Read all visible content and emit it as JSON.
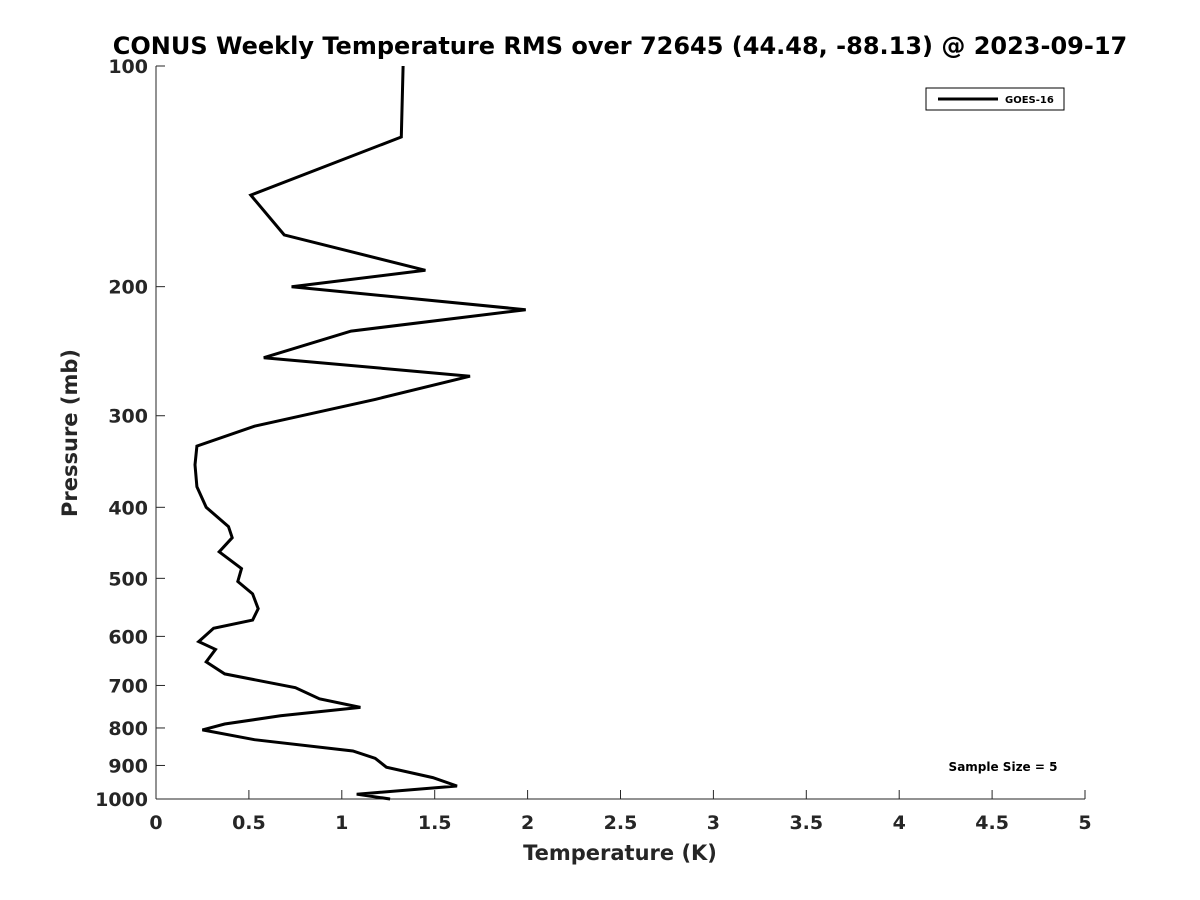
{
  "chart_data": {
    "type": "line",
    "title": "CONUS Weekly Temperature RMS over 72645 (44.48, -88.13) @ 2023-09-17",
    "xlabel": "Temperature (K)",
    "ylabel": "Pressure (mb)",
    "xlim": [
      0,
      5
    ],
    "ylim": [
      100,
      1000
    ],
    "y_scale": "log",
    "y_reversed": true,
    "x_ticks": [
      0,
      0.5,
      1,
      1.5,
      2,
      2.5,
      3,
      3.5,
      4,
      4.5,
      5
    ],
    "x_tick_labels": [
      "0",
      "0.5",
      "1",
      "1.5",
      "2",
      "2.5",
      "3",
      "3.5",
      "4",
      "4.5",
      "5"
    ],
    "y_ticks": [
      100,
      200,
      300,
      400,
      500,
      600,
      700,
      800,
      900,
      1000
    ],
    "y_tick_labels": [
      "100",
      "200",
      "300",
      "400",
      "500",
      "600",
      "700",
      "800",
      "900",
      "1000"
    ],
    "grid": false,
    "legend_position": "top-right",
    "series": [
      {
        "name": "GOES-16",
        "color": "#000000",
        "temperature": [
          1.33,
          1.32,
          0.51,
          0.69,
          1.45,
          0.73,
          1.99,
          1.05,
          0.58,
          1.69,
          1.18,
          0.53,
          0.22,
          0.21,
          0.22,
          0.27,
          0.39,
          0.41,
          0.34,
          0.46,
          0.44,
          0.52,
          0.55,
          0.52,
          0.31,
          0.23,
          0.32,
          0.27,
          0.37,
          0.75,
          0.88,
          1.1,
          0.67,
          0.37,
          0.25,
          0.53,
          1.06,
          1.18,
          1.24,
          1.49,
          1.62,
          1.08,
          1.26
        ],
        "pressure": [
          100,
          125,
          150,
          170,
          190,
          200,
          215,
          230,
          250,
          265,
          285,
          310,
          330,
          350,
          375,
          400,
          425,
          440,
          460,
          485,
          505,
          525,
          550,
          570,
          585,
          610,
          625,
          650,
          675,
          705,
          730,
          750,
          770,
          790,
          805,
          830,
          860,
          880,
          905,
          935,
          960,
          985,
          1000
        ]
      }
    ],
    "annotations": [
      "Sample Size = 5"
    ]
  }
}
